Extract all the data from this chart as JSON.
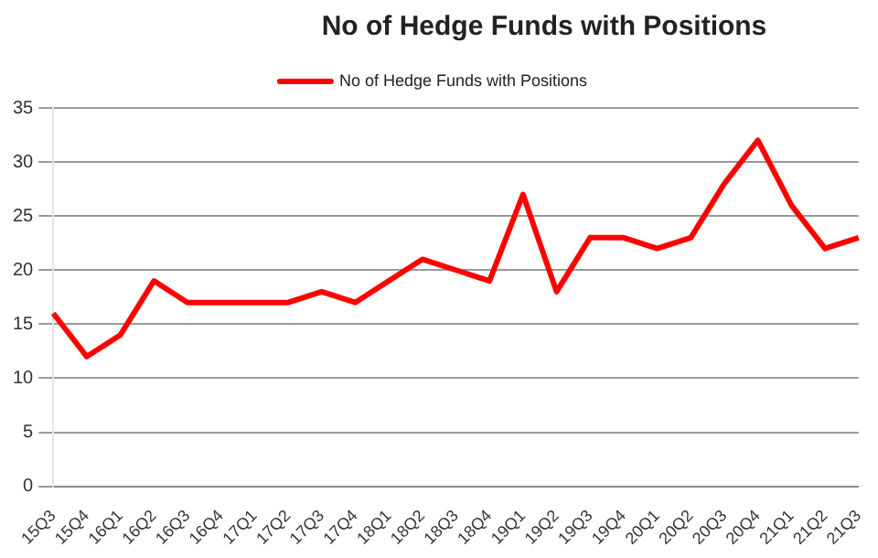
{
  "chart_data": {
    "type": "line",
    "title": "No of Hedge Funds with Positions",
    "categories": [
      "15Q3",
      "15Q4",
      "16Q1",
      "16Q2",
      "16Q3",
      "16Q4",
      "17Q1",
      "17Q2",
      "17Q3",
      "17Q4",
      "18Q1",
      "18Q2",
      "18Q3",
      "18Q4",
      "19Q1",
      "19Q2",
      "19Q3",
      "19Q4",
      "20Q1",
      "20Q2",
      "20Q3",
      "20Q4",
      "21Q1",
      "21Q2",
      "21Q3"
    ],
    "series": [
      {
        "name": "No of Hedge Funds with Positions",
        "color": "#ff0000",
        "values": [
          16,
          12,
          14,
          19,
          17,
          17,
          17,
          17,
          18,
          17,
          19,
          21,
          20,
          19,
          27,
          18,
          23,
          23,
          22,
          23,
          28,
          32,
          26,
          22,
          23
        ]
      }
    ],
    "ylim": [
      0,
      35
    ],
    "yticks": [
      0,
      5,
      10,
      15,
      20,
      25,
      30,
      35
    ],
    "grid": "y",
    "legend": "top",
    "marker": "none",
    "line_style": "solid"
  }
}
